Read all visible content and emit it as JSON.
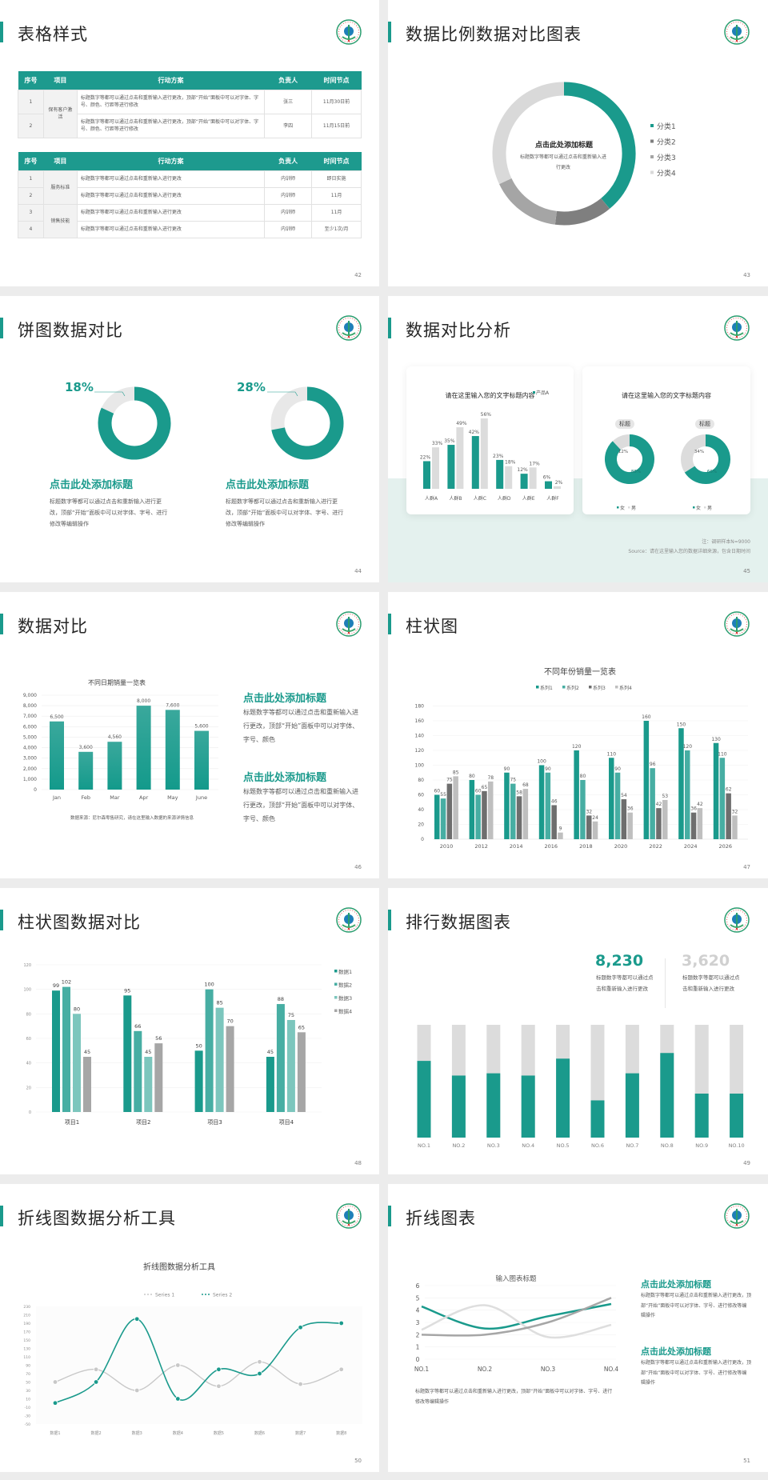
{
  "colors": {
    "teal": "#1a9a8c",
    "teal2": "#47aea3",
    "teal3": "#7cc6bd",
    "dark_gray": "#7f7f7f",
    "gray": "#a6a6a6",
    "light_gray": "#d9d9d9"
  },
  "logo_icon": "hospital-emblem-icon",
  "s42": {
    "title": "表格样式",
    "page": "42",
    "headers": [
      "序号",
      "项目",
      "行动方案",
      "负责人",
      "时间节点"
    ],
    "table1": [
      {
        "no": "1",
        "item": "保有客户激活",
        "plan": "标题数字等都可以通过点击和重新输入进行更改，顶部“开始”面板中可以对字体、字号、颜色、行距等进行修改",
        "owner": "张三",
        "time": "11月30日前"
      },
      {
        "no": "2",
        "item": "",
        "plan": "标题数字等都可以通过点击和重新输入进行更改，顶部“开始”面板中可以对字体、字号、颜色、行距等进行修改",
        "owner": "李四",
        "time": "11月15日前"
      }
    ],
    "table2": [
      {
        "no": "1",
        "item": "服务标准",
        "plan": "标题数字等都可以通过点击和重新输入进行更改",
        "owner": "内训师",
        "time": "即日实施"
      },
      {
        "no": "2",
        "item": "",
        "plan": "标题数字等都可以通过点击和重新输入进行更改",
        "owner": "内训师",
        "time": "11月"
      },
      {
        "no": "3",
        "item": "销售技能",
        "plan": "标题数字等都可以通过点击和重新输入进行更改",
        "owner": "内训师",
        "time": "11月"
      },
      {
        "no": "4",
        "item": "",
        "plan": "标题数字等都可以通过点击和重新输入进行更改",
        "owner": "内训师",
        "time": "至少1次/月"
      }
    ]
  },
  "s43": {
    "title": "数据比例数据对比图表",
    "page": "43",
    "center_heading": "点击此处添加标题",
    "center_text": "标题数字等都可以通过点击和重新输入进行更改"
  },
  "s44": {
    "title": "饼图数据对比",
    "page": "44",
    "items": [
      {
        "percent": "18%",
        "heading": "点击此处添加标题",
        "text": "标题数字等都可以通过点击和重新输入进行更改，顶部“开始”面板中可以对字体、字号、进行修改等编辑操作"
      },
      {
        "percent": "28%",
        "heading": "点击此处添加标题",
        "text": "标题数字等都可以通过点击和重新输入进行更改，顶部“开始”面板中可以对字体、字号、进行修改等编辑操作"
      }
    ]
  },
  "s45": {
    "title": "数据对比分析",
    "page": "45",
    "card1_title": "请在这里输入您的文字标题内容",
    "card2_title": "请在这里输入您的文字标题内容",
    "pill1": "标题",
    "pill2": "标题",
    "note": "注：调研样本N=9000",
    "source": "Source：请在这里输入您的数据详细来源，包含日期时间"
  },
  "s46": {
    "title": "数据对比",
    "page": "46",
    "chart_title": "不同日期销量一览表",
    "source": "数据来源：尼尔森零售研究，请在这里输入数据的来源详情信息",
    "blocks": [
      {
        "heading": "点击此处添加标题",
        "text": "标题数字等都可以通过点击和重新输入进行更改，顶部“开始”面板中可以对字体、字号、颜色"
      },
      {
        "heading": "点击此处添加标题",
        "text": "标题数字等都可以通过点击和重新输入进行更改，顶部“开始”面板中可以对字体、字号、颜色"
      }
    ]
  },
  "s47": {
    "title": "柱状图",
    "page": "47"
  },
  "s48": {
    "title": "柱状图数据对比",
    "page": "48"
  },
  "s49": {
    "title": "排行数据图表",
    "page": "49",
    "stats": [
      {
        "value": "8,230",
        "text": "标题数字等都可以通过点击和重新输入进行更改",
        "color": "#1a9a8c"
      },
      {
        "value": "3,620",
        "text": "标题数字等都可以通过点击和重新输入进行更改",
        "color": "#d0d0d0"
      }
    ]
  },
  "s50": {
    "title": "折线图数据分析工具",
    "page": "50"
  },
  "s51": {
    "title": "折线图表",
    "page": "51",
    "caption": "标题数字等都可以通过点击和重新输入进行更改，顶部“开始”面板中可以对字体、字号、进行修改等编辑操作",
    "blocks": [
      {
        "heading": "点击此处添加标题",
        "text": "标题数字等都可以通过点击和重新输入进行更改，顶部“开始”面板中可以对字体、字号、进行修改等编辑操作"
      },
      {
        "heading": "点击此处添加标题",
        "text": "标题数字等都可以通过点击和重新输入进行更改，顶部“开始”面板中可以对字体、字号、进行修改等编辑操作"
      }
    ]
  },
  "chart_data": [
    {
      "id": "s43-donut",
      "type": "pie",
      "categories": [
        "分类1",
        "分类2",
        "分类3",
        "分类4"
      ],
      "values": [
        39,
        13,
        16,
        32
      ],
      "legend": "right"
    },
    {
      "id": "s44-donut1",
      "type": "pie",
      "categories": [
        "",
        ""
      ],
      "values": [
        82,
        18
      ],
      "labels": [
        "",
        "18%"
      ]
    },
    {
      "id": "s44-donut2",
      "type": "pie",
      "categories": [
        "",
        ""
      ],
      "values": [
        72,
        28
      ],
      "labels": [
        "",
        "28%"
      ]
    },
    {
      "id": "s45-bars",
      "type": "bar",
      "categories": [
        "人群A",
        "人群B",
        "人群C",
        "人群D",
        "人群E",
        "人群F"
      ],
      "series": [
        {
          "name": "产品A",
          "values": [
            22,
            35,
            42,
            23,
            12,
            6
          ]
        },
        {
          "values": [
            33,
            49,
            56,
            18,
            17,
            2
          ]
        }
      ],
      "unit": "%",
      "legend": "top-right"
    },
    {
      "id": "s45-donut1",
      "type": "pie",
      "categories": [
        "女",
        "男"
      ],
      "values": [
        88,
        12
      ],
      "labels": [
        "88%",
        "12%"
      ]
    },
    {
      "id": "s45-donut2",
      "type": "pie",
      "categories": [
        "女",
        "男"
      ],
      "values": [
        66,
        34
      ],
      "labels": [
        "66%",
        "34%"
      ]
    },
    {
      "id": "s46-bars",
      "type": "bar",
      "title": "不同日期销量一览表",
      "categories": [
        "Jan",
        "Feb",
        "Mar",
        "Apr",
        "May",
        "June"
      ],
      "values": [
        6500,
        3600,
        4560,
        8000,
        7600,
        5600
      ],
      "ylim": [
        0,
        9000
      ],
      "yticks": [
        "0",
        "1,000",
        "2,000",
        "3,000",
        "4,000",
        "5,000",
        "6,000",
        "7,000",
        "8,000",
        "9,000"
      ],
      "value_labels": [
        "6,500",
        "3,600",
        "4,560",
        "8,000",
        "7,600",
        "5,600"
      ],
      "grid": true
    },
    {
      "id": "s47-bars",
      "type": "bar",
      "title": "不同年份销量一览表",
      "categories": [
        "2010",
        "2012",
        "2014",
        "2016",
        "2018",
        "2020",
        "2022",
        "2024",
        "2026"
      ],
      "series": [
        {
          "name": "系列1",
          "values": [
            60,
            80,
            90,
            100,
            120,
            110,
            160,
            150,
            130
          ]
        },
        {
          "name": "系列2",
          "values": [
            55,
            60,
            75,
            90,
            80,
            90,
            96,
            120,
            110
          ]
        },
        {
          "name": "系列3",
          "values": [
            75,
            65,
            58,
            46,
            32,
            54,
            42,
            36,
            62
          ]
        },
        {
          "name": "系列4",
          "values": [
            85,
            78,
            68,
            9,
            24,
            36,
            53,
            42,
            32
          ]
        }
      ],
      "ylim": [
        0,
        180
      ],
      "yticks": [
        "0",
        "20",
        "40",
        "60",
        "80",
        "100",
        "120",
        "140",
        "160",
        "180"
      ],
      "legend": "top",
      "grid": true
    },
    {
      "id": "s48-bars",
      "type": "bar",
      "categories": [
        "项目1",
        "项目2",
        "项目3",
        "项目4"
      ],
      "series": [
        {
          "name": "数据1",
          "values": [
            99,
            95,
            50,
            45
          ]
        },
        {
          "name": "数据2",
          "values": [
            102,
            66,
            100,
            88
          ]
        },
        {
          "name": "数据3",
          "values": [
            80,
            45,
            85,
            75
          ]
        },
        {
          "name": "数据4",
          "values": [
            45,
            56,
            70,
            65
          ]
        }
      ],
      "ylim": [
        0,
        120
      ],
      "yticks": [
        "0",
        "20",
        "40",
        "60",
        "80",
        "100",
        "120"
      ],
      "legend": "right",
      "grid": true
    },
    {
      "id": "s49-bars",
      "type": "bar",
      "categories": [
        "NO.1",
        "NO.2",
        "NO.3",
        "NO.4",
        "NO.5",
        "NO.6",
        "NO.7",
        "NO.8",
        "NO.9",
        "NO.10"
      ],
      "values": [
        0.68,
        0.55,
        0.57,
        0.55,
        0.7,
        0.33,
        0.57,
        0.75,
        0.39,
        0.39
      ],
      "ylim": [
        0,
        1
      ]
    },
    {
      "id": "s50-lines",
      "type": "line",
      "title": "折线图数据分析工具",
      "categories": [
        "数据1",
        "数据2",
        "数据3",
        "数据4",
        "数据5",
        "数据6",
        "数据7",
        "数据8"
      ],
      "series": [
        {
          "name": "Series 1",
          "values": [
            50,
            80,
            30,
            90,
            40,
            98,
            45,
            80
          ]
        },
        {
          "name": "Series 2",
          "values": [
            0,
            50,
            200,
            10,
            80,
            70,
            180,
            190
          ]
        }
      ],
      "ylim": [
        -50,
        230
      ],
      "yticks": [
        "-50",
        "-30",
        "-10",
        "10",
        "30",
        "50",
        "70",
        "90",
        "110",
        "130",
        "150",
        "170",
        "190",
        "210",
        "230"
      ],
      "legend": "top"
    },
    {
      "id": "s51-lines",
      "type": "line",
      "title": "输入图表标题",
      "categories": [
        "NO.1",
        "NO.2",
        "NO.3",
        "NO.4"
      ],
      "series": [
        {
          "values": [
            4.3,
            2.5,
            3.5,
            4.5
          ]
        },
        {
          "values": [
            2.4,
            4.4,
            1.8,
            2.8
          ]
        },
        {
          "values": [
            2.0,
            2.0,
            3.0,
            5.0
          ]
        }
      ],
      "ylim": [
        0,
        6
      ],
      "yticks": [
        "0",
        "1",
        "2",
        "3",
        "4",
        "5",
        "6"
      ],
      "grid": true
    }
  ]
}
